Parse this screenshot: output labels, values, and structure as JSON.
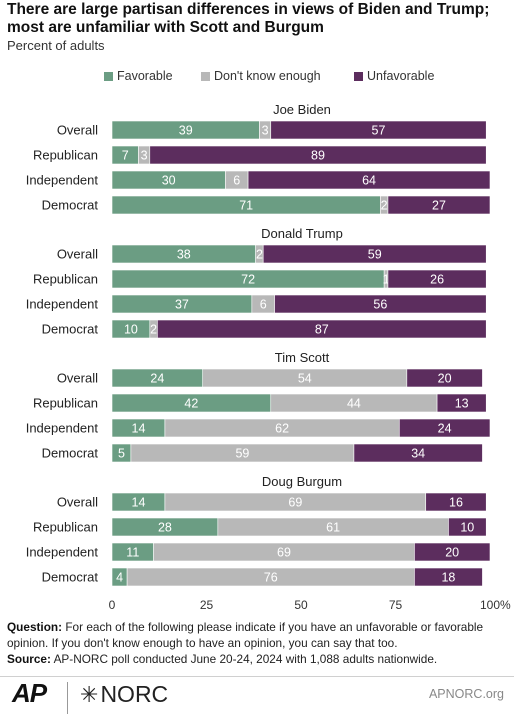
{
  "title": "There are large partisan differences in views of Biden and Trump; most are unfamiliar with Scott and Burgum",
  "subtitle": "Percent of adults",
  "colors": {
    "favorable": "#6b9d83",
    "dont_know": "#b8b8b8",
    "unfavorable": "#5c2d5e"
  },
  "chart_data": {
    "type": "bar",
    "orientation": "horizontal",
    "stacked": true,
    "title": "There are large partisan differences in views of Biden and Trump; most are unfamiliar with Scott and Burgum",
    "subtitle": "Percent of adults",
    "categories": [
      "Overall",
      "Republican",
      "Independent",
      "Democrat"
    ],
    "series_names": [
      "Favorable",
      "Don't know enough",
      "Unfavorable"
    ],
    "xlim": [
      0,
      100
    ],
    "x_ticks": [
      "0",
      "25",
      "50",
      "75",
      "100%"
    ],
    "legend_position": "top",
    "groups": [
      {
        "name": "Joe Biden",
        "rows": [
          {
            "label": "Overall",
            "values": [
              39,
              3,
              57
            ]
          },
          {
            "label": "Republican",
            "values": [
              7,
              3,
              89
            ]
          },
          {
            "label": "Independent",
            "values": [
              30,
              6,
              64
            ]
          },
          {
            "label": "Democrat",
            "values": [
              71,
              2,
              27
            ]
          }
        ]
      },
      {
        "name": "Donald Trump",
        "rows": [
          {
            "label": "Overall",
            "values": [
              38,
              2,
              59
            ]
          },
          {
            "label": "Republican",
            "values": [
              72,
              1,
              26
            ]
          },
          {
            "label": "Independent",
            "values": [
              37,
              6,
              56
            ]
          },
          {
            "label": "Democrat",
            "values": [
              10,
              2,
              87
            ]
          }
        ]
      },
      {
        "name": "Tim Scott",
        "rows": [
          {
            "label": "Overall",
            "values": [
              24,
              54,
              20
            ]
          },
          {
            "label": "Republican",
            "values": [
              42,
              44,
              13
            ]
          },
          {
            "label": "Independent",
            "values": [
              14,
              62,
              24
            ]
          },
          {
            "label": "Democrat",
            "values": [
              5,
              59,
              34
            ]
          }
        ]
      },
      {
        "name": "Doug Burgum",
        "rows": [
          {
            "label": "Overall",
            "values": [
              14,
              69,
              16
            ]
          },
          {
            "label": "Republican",
            "values": [
              28,
              61,
              10
            ]
          },
          {
            "label": "Independent",
            "values": [
              11,
              69,
              20
            ]
          },
          {
            "label": "Democrat",
            "values": [
              4,
              76,
              18
            ]
          }
        ]
      }
    ]
  },
  "footnote": {
    "question_label": "Question:",
    "question_text": "For each of the following please indicate if you have an unfavorable or favorable opinion. If you don't know enough to have an opinion, you can say that too.",
    "source_label": "Source:",
    "source_text": "AP-NORC poll conducted June 20-24, 2024 with 1,088 adults nationwide."
  },
  "branding": {
    "ap": "AP",
    "norc": "NORC",
    "site": "APNORC.org"
  }
}
